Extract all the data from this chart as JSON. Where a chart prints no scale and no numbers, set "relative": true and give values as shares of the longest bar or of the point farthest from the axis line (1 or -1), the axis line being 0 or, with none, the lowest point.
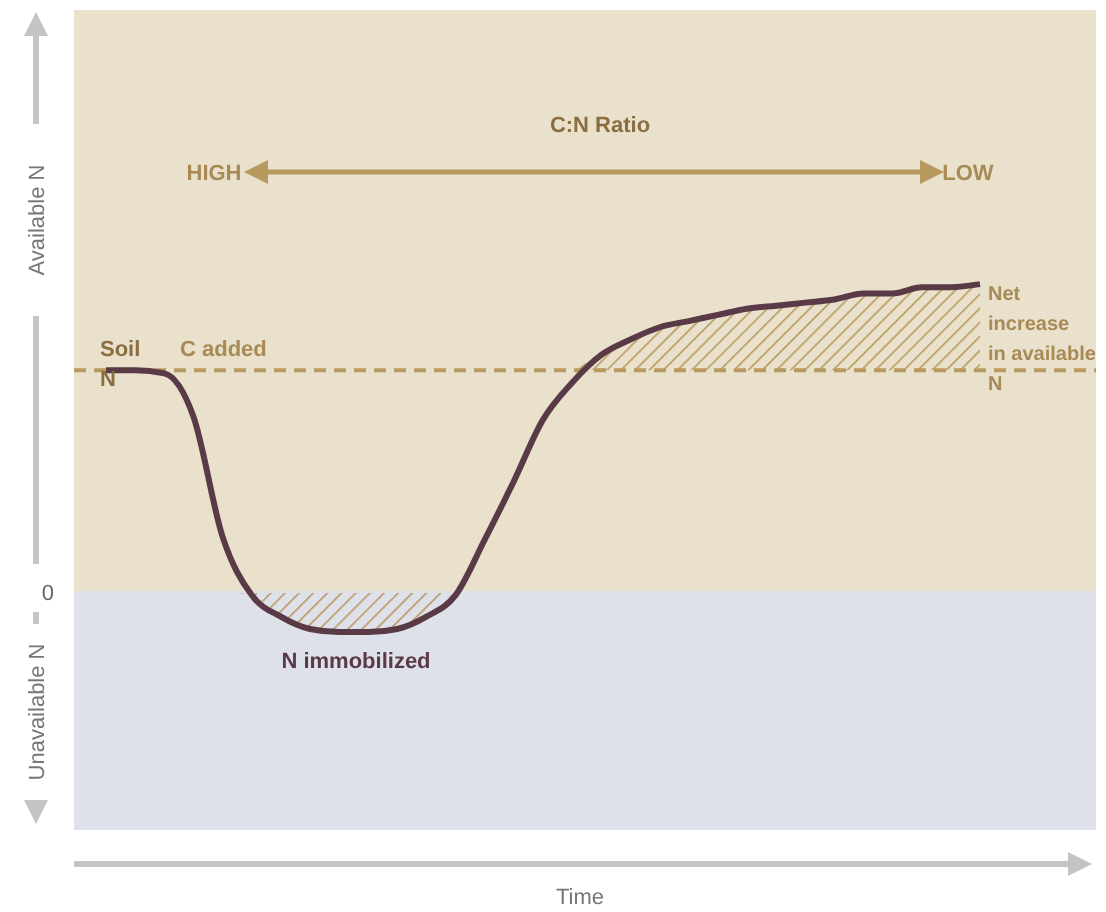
{
  "chart_data": {
    "type": "line",
    "relative": true,
    "ylabel": "Available N",
    "categories": [
      null,
      null,
      null,
      null,
      null,
      null,
      null,
      null,
      null,
      null,
      null,
      null,
      null,
      null,
      null,
      null,
      null,
      null,
      null,
      null,
      null,
      null,
      null,
      null,
      null,
      null,
      null,
      null,
      null,
      null,
      null
    ],
    "series": [
      {
        "color": "#5a3a46",
        "values": [
          0.72,
          0.72,
          0.71,
          0.57,
          0.18,
          -0.01,
          -0.08,
          -0.12,
          -0.13,
          -0.13,
          -0.12,
          -0.08,
          -0.01,
          0.17,
          0.36,
          0.56,
          0.68,
          0.77,
          0.82,
          0.86,
          0.88,
          0.9,
          0.92,
          0.93,
          0.94,
          0.95,
          0.97,
          0.97,
          0.99,
          0.99,
          1
        ],
        "lower": [
          null,
          null,
          null,
          null,
          0,
          -0.01,
          -0.08,
          -0.12,
          -0.13,
          -0.13,
          -0.12,
          -0.08,
          -0.01,
          0,
          null,
          null,
          0.72,
          0.72,
          0.72,
          0.72,
          0.72,
          0.72,
          0.72,
          0.72,
          0.72,
          0.72,
          0.72,
          0.72,
          0.72,
          0.72,
          0.72
        ],
        "upper": [
          null,
          null,
          null,
          null,
          0,
          0,
          0,
          0,
          0,
          0,
          0,
          0,
          0,
          0,
          null,
          null,
          0.72,
          0.77,
          0.82,
          0.86,
          0.88,
          0.9,
          0.92,
          0.93,
          0.94,
          0.95,
          0.97,
          0.97,
          0.99,
          0.99,
          1
        ]
      }
    ],
    "ref_lines": [
      {
        "axis": "y",
        "value": 0.72,
        "label": "C added",
        "color": "#b8995e",
        "line_style": "dashed"
      },
      {
        "axis": "y",
        "value": 0,
        "label": "0",
        "color": "#dfe1ea"
      }
    ],
    "annotations": [
      "C:N Ratio",
      "HIGH",
      "LOW",
      "Soil N",
      "N immobilized",
      "Net increase in available N",
      "Unavailable N",
      "Time"
    ],
    "grid": false,
    "legend": false,
    "marker": "none",
    "line_style": "solid"
  }
}
